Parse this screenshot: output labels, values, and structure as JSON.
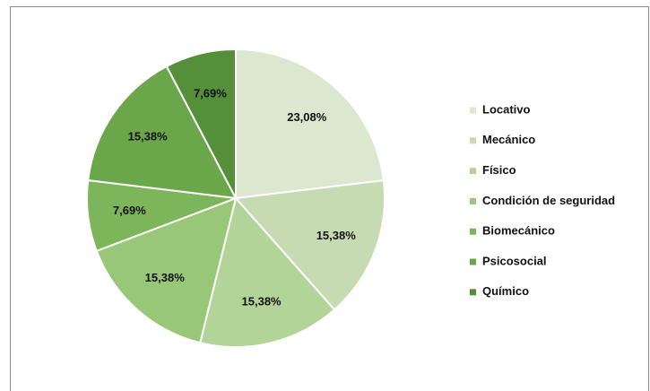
{
  "chart_data": {
    "type": "pie",
    "categories": [
      "Locativo",
      "Mecánico",
      "Físico",
      "Condición de seguridad",
      "Biomecánico",
      "Psicosocial",
      "Químico"
    ],
    "values": [
      23.08,
      15.38,
      15.38,
      15.38,
      7.69,
      15.38,
      7.69
    ],
    "value_labels": [
      "23,08%",
      "15,38%",
      "15,38%",
      "15,38%",
      "7,69%",
      "15,38%",
      "7,69%"
    ],
    "colors": [
      "#dce7d0",
      "#c6dbb1",
      "#b2d499",
      "#98c877",
      "#7db65a",
      "#6ba64a",
      "#558f3a"
    ],
    "legend": "right"
  }
}
